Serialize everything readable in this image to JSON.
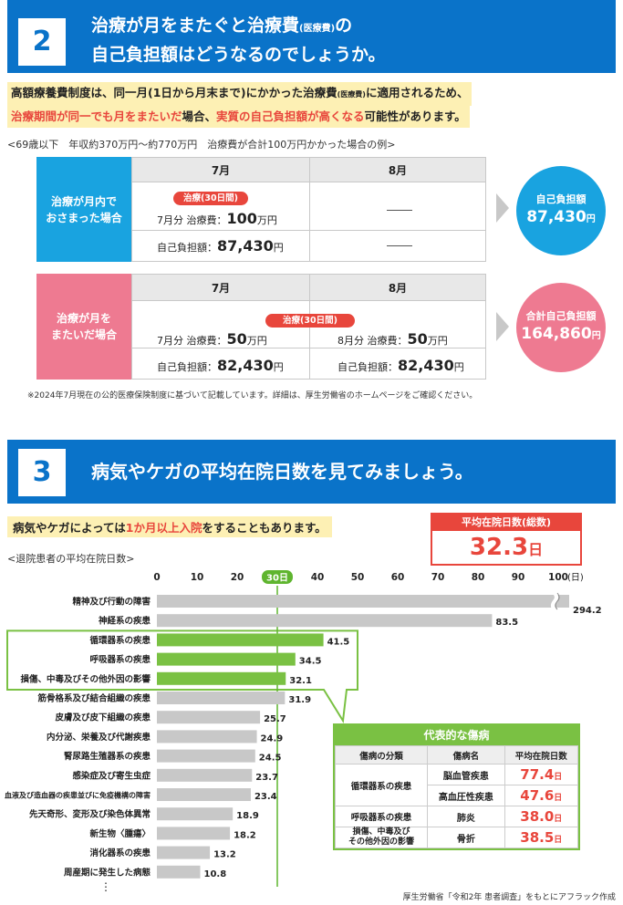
{
  "section2": {
    "number": "2",
    "title_line1_a": "治療が月をまたぐと治療費",
    "title_line1_small": "(医療費)",
    "title_line1_b": "の",
    "title_line2": "自己負担額はどうなるのでしょうか。"
  },
  "intro": {
    "line1_a": "高額療養費制度は、同一月(1日から月末まで)にかかった治療費",
    "line1_small": "(医療費)",
    "line1_b": "に適用されるため、",
    "line2_red1": "治療期間が同一でも月をまたいだ",
    "line2_mid": "場合、",
    "line2_red2": "実質の自己負担額が高くなる",
    "line2_end": "可能性があります。"
  },
  "example_caption": "<69歳以下　年収約370万円〜約770万円　治療費が合計100万円かかった場合の例>",
  "case1": {
    "label_line1": "治療が月内で",
    "label_line2": "おさまった場合",
    "month1": "7月",
    "month2": "8月",
    "pill": "治療(30日間)",
    "cost_prefix": "7月分 治療費：",
    "cost_value": "100",
    "cost_unit": "万円",
    "self_prefix": "自己負担額：",
    "self_value": "87,430",
    "self_unit": "円",
    "result_label": "自己負担額",
    "result_value": "87,430",
    "result_unit": "円",
    "color": "#19a3e0"
  },
  "case2": {
    "label_line1": "治療が月を",
    "label_line2": "またいだ場合",
    "month1": "7月",
    "month2": "8月",
    "pill": "治療(30日間)",
    "cost1_prefix": "7月分 治療費：",
    "cost1_value": "50",
    "cost1_unit": "万円",
    "cost2_prefix": "8月分 治療費：",
    "cost2_value": "50",
    "cost2_unit": "万円",
    "self1_prefix": "自己負担額：",
    "self1_value": "82,430",
    "self1_unit": "円",
    "self2_prefix": "自己負担額：",
    "self2_value": "82,430",
    "self2_unit": "円",
    "result_label": "合計自己負担額",
    "result_value": "164,860",
    "result_unit": "円",
    "color": "#ee7a91"
  },
  "note": "※2024年7月現在の公的医療保険制度に基づいて記載しています。詳細は、厚生労働省のホームページをご確認ください。",
  "section3": {
    "number": "3",
    "title": "病気やケガの平均在院日数を見てみましょう。"
  },
  "intro2": {
    "a": "病気やケガによっては",
    "red": "1か月以上入院",
    "b": "をすることもあります。"
  },
  "avg_total": {
    "label": "平均在院日数(総数)",
    "value": "32.3",
    "unit": "日"
  },
  "chart_caption": "<退院患者の平均在院日数>",
  "chart_data": {
    "type": "bar",
    "orientation": "horizontal",
    "title": "<退院患者の平均在院日数>",
    "unit": "(日)",
    "xlim": [
      0,
      100
    ],
    "ticks": [
      0,
      10,
      20,
      30,
      40,
      50,
      60,
      70,
      80,
      90,
      100
    ],
    "reference_line": {
      "value": 30,
      "label": "30日"
    },
    "categories": [
      "精神及び行動の障害",
      "神経系の疾患",
      "循環器系の疾患",
      "呼吸器系の疾患",
      "損傷、中毒及びその他外因の影響",
      "筋骨格系及び結合組織の疾患",
      "皮膚及び皮下組織の疾患",
      "内分泌、栄養及び代謝疾患",
      "腎尿路生殖器系の疾患",
      "感染症及び寄生虫症",
      "血液及び造血器の疾患並びに免疫機構の障害",
      "先天奇形、変形及び染色体異常",
      "新生物〈腫瘍〉",
      "消化器系の疾患",
      "周産期に発生した病態"
    ],
    "values": [
      294.2,
      83.5,
      41.5,
      34.5,
      32.1,
      31.9,
      25.7,
      24.9,
      24.5,
      23.7,
      23.4,
      18.9,
      18.2,
      13.2,
      10.8
    ],
    "value_labels": [
      "294.2",
      "83.5",
      "41.5",
      "34.5",
      "32.1",
      "31.9",
      "25.7",
      "24.9",
      "24.5",
      "23.7",
      "23.4",
      "18.9",
      "18.2",
      "13.2",
      "10.8"
    ],
    "highlighted": [
      2,
      3,
      4
    ],
    "colors": {
      "default": "#c8c8c8",
      "highlight": "#7ac143",
      "reference": "#5fb52f"
    },
    "broken_bar_index": 0,
    "continuation": "⋮"
  },
  "representative": {
    "title": "代表的な傷病",
    "headers": [
      "傷病の分類",
      "傷病名",
      "平均在院日数"
    ],
    "rows": [
      {
        "category": "循環器系の疾患",
        "name": "脳血管疾患",
        "value": "77.4",
        "unit": "日"
      },
      {
        "category": "",
        "name": "高血圧性疾患",
        "value": "47.6",
        "unit": "日"
      },
      {
        "category": "呼吸器系の疾患",
        "name": "肺炎",
        "value": "38.0",
        "unit": "日"
      },
      {
        "category": "損傷、中毒及び\nその他外因の影響",
        "name": "骨折",
        "value": "38.5",
        "unit": "日"
      }
    ]
  },
  "source": "厚生労働省「令和2年 患者調査」をもとにアフラック作成"
}
